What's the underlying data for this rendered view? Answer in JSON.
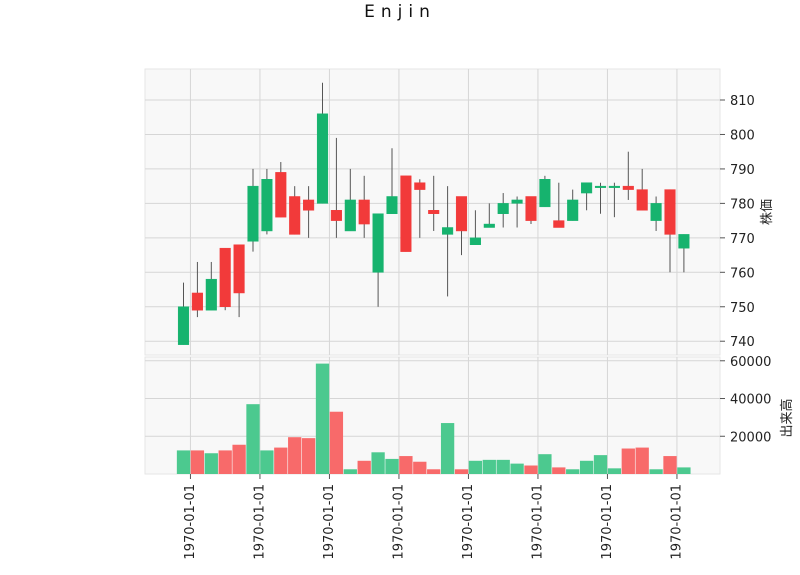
{
  "chart_data": {
    "type": "candlestick",
    "title": "Enjin",
    "price_axis_label": "株価",
    "volume_axis_label": "出来高",
    "up_color": "#16b36e",
    "down_color": "#f23a3a",
    "up_volume_color": "#4cc98f",
    "down_volume_color": "#f86a6a",
    "background_color": "#f8f8f8",
    "grid": true,
    "price_ylim": [
      736,
      819
    ],
    "price_ticks": [
      740,
      750,
      760,
      770,
      780,
      790,
      800,
      810
    ],
    "volume_ylim": [
      0,
      62000
    ],
    "volume_ticks": [
      20000,
      40000,
      60000
    ],
    "x_tick_labels": [
      "1970-01-01",
      "1970-01-01",
      "1970-01-01",
      "1970-01-01",
      "1970-01-01",
      "1970-01-01",
      "1970-01-01",
      "1970-01-01"
    ],
    "x_tick_candle_index": [
      0.5,
      5.5,
      10.5,
      15.5,
      20.5,
      25.5,
      30.5,
      35.5
    ],
    "candles": [
      {
        "open": 739,
        "high": 757,
        "low": 739,
        "close": 750,
        "volume": 12500
      },
      {
        "open": 754,
        "high": 763,
        "low": 747,
        "close": 749,
        "volume": 12500
      },
      {
        "open": 749,
        "high": 763,
        "low": 749,
        "close": 758,
        "volume": 11000
      },
      {
        "open": 767,
        "high": 767,
        "low": 749,
        "close": 750,
        "volume": 12500
      },
      {
        "open": 768,
        "high": 768,
        "low": 747,
        "close": 754,
        "volume": 15500
      },
      {
        "open": 769,
        "high": 790,
        "low": 766,
        "close": 785,
        "volume": 37000
      },
      {
        "open": 772,
        "high": 790,
        "low": 771,
        "close": 787,
        "volume": 12500
      },
      {
        "open": 789,
        "high": 792,
        "low": 776,
        "close": 776,
        "volume": 14000
      },
      {
        "open": 782,
        "high": 785,
        "low": 771,
        "close": 771,
        "volume": 19500
      },
      {
        "open": 781,
        "high": 785,
        "low": 770,
        "close": 778,
        "volume": 19000
      },
      {
        "open": 780,
        "high": 815,
        "low": 780,
        "close": 806,
        "volume": 58500
      },
      {
        "open": 778,
        "high": 799,
        "low": 770,
        "close": 775,
        "volume": 33000
      },
      {
        "open": 772,
        "high": 790,
        "low": 772,
        "close": 781,
        "volume": 2500
      },
      {
        "open": 781,
        "high": 788,
        "low": 770,
        "close": 774,
        "volume": 7000
      },
      {
        "open": 760,
        "high": 777,
        "low": 750,
        "close": 777,
        "volume": 11500
      },
      {
        "open": 777,
        "high": 796,
        "low": 777,
        "close": 782,
        "volume": 8000
      },
      {
        "open": 788,
        "high": 788,
        "low": 766,
        "close": 766,
        "volume": 9500
      },
      {
        "open": 786,
        "high": 787,
        "low": 770,
        "close": 784,
        "volume": 6500
      },
      {
        "open": 778,
        "high": 788,
        "low": 772,
        "close": 777,
        "volume": 2500
      },
      {
        "open": 771,
        "high": 785,
        "low": 753,
        "close": 773,
        "volume": 27000
      },
      {
        "open": 782,
        "high": 782,
        "low": 765,
        "close": 772,
        "volume": 2500
      },
      {
        "open": 768,
        "high": 778,
        "low": 768,
        "close": 770,
        "volume": 7000
      },
      {
        "open": 773,
        "high": 780,
        "low": 773,
        "close": 774,
        "volume": 7500
      },
      {
        "open": 777,
        "high": 783,
        "low": 773,
        "close": 780,
        "volume": 7500
      },
      {
        "open": 780,
        "high": 782,
        "low": 773,
        "close": 781,
        "volume": 5500
      },
      {
        "open": 782,
        "high": 782,
        "low": 774,
        "close": 775,
        "volume": 4500
      },
      {
        "open": 779,
        "high": 788,
        "low": 779,
        "close": 787,
        "volume": 10500
      },
      {
        "open": 775,
        "high": 786,
        "low": 773,
        "close": 773,
        "volume": 3500
      },
      {
        "open": 775,
        "high": 784,
        "low": 775,
        "close": 781,
        "volume": 2500
      },
      {
        "open": 783,
        "high": 786,
        "low": 778,
        "close": 786,
        "volume": 7000
      },
      {
        "open": 785,
        "high": 786,
        "low": 777,
        "close": 785,
        "volume": 10000
      },
      {
        "open": 785,
        "high": 786,
        "low": 776,
        "close": 785,
        "volume": 3000
      },
      {
        "open": 785,
        "high": 795,
        "low": 781,
        "close": 784,
        "volume": 13500
      },
      {
        "open": 784,
        "high": 790,
        "low": 778,
        "close": 778,
        "volume": 14000
      },
      {
        "open": 775,
        "high": 782,
        "low": 772,
        "close": 780,
        "volume": 2500
      },
      {
        "open": 784,
        "high": 784,
        "low": 760,
        "close": 771,
        "volume": 9500
      },
      {
        "open": 767,
        "high": 771,
        "low": 760,
        "close": 771,
        "volume": 3500
      }
    ]
  }
}
